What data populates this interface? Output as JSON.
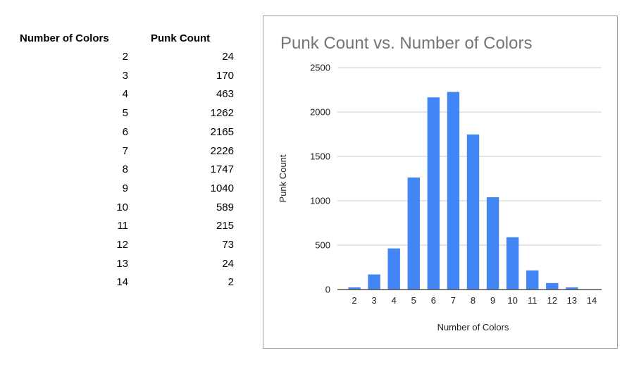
{
  "table": {
    "headers": [
      "Number of Colors",
      "Punk Count"
    ],
    "rows": [
      [
        "2",
        "24"
      ],
      [
        "3",
        "170"
      ],
      [
        "4",
        "463"
      ],
      [
        "5",
        "1262"
      ],
      [
        "6",
        "2165"
      ],
      [
        "7",
        "2226"
      ],
      [
        "8",
        "1747"
      ],
      [
        "9",
        "1040"
      ],
      [
        "10",
        "589"
      ],
      [
        "11",
        "215"
      ],
      [
        "12",
        "73"
      ],
      [
        "13",
        "24"
      ],
      [
        "14",
        "2"
      ]
    ]
  },
  "chart_data": {
    "type": "bar",
    "title": "Punk Count vs. Number of Colors",
    "xlabel": "Number of Colors",
    "ylabel": "Punk Count",
    "categories": [
      "2",
      "3",
      "4",
      "5",
      "6",
      "7",
      "8",
      "9",
      "10",
      "11",
      "12",
      "13",
      "14"
    ],
    "values": [
      24,
      170,
      463,
      1262,
      2165,
      2226,
      1747,
      1040,
      589,
      215,
      73,
      24,
      2
    ],
    "ylim": [
      0,
      2500
    ],
    "yticks": [
      "0",
      "500",
      "1000",
      "1500",
      "2000",
      "2500"
    ],
    "grid": true,
    "bar_color": "#4285f4",
    "grid_color": "#cccccc"
  }
}
